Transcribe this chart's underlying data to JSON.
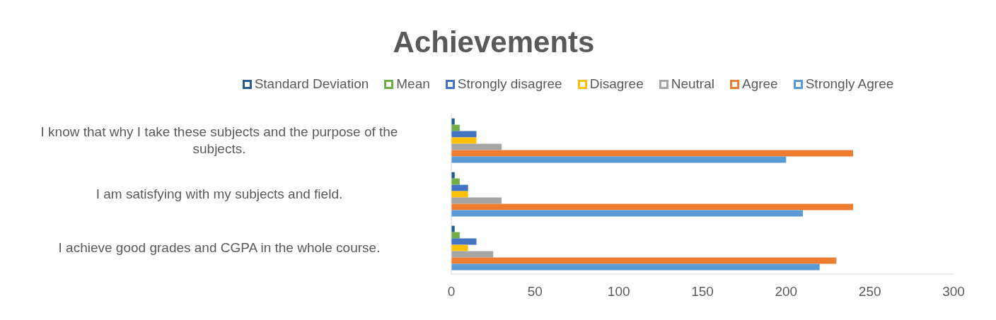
{
  "chart_data": {
    "type": "bar",
    "orientation": "horizontal",
    "title": "Achievements",
    "categories": [
      "I know that why I take these subjects and the purpose of the subjects.",
      "I am satisfying with my subjects and field.",
      "I achieve good grades and CGPA in the whole course."
    ],
    "series": [
      {
        "name": "Standard Deviation",
        "color": "#255e91",
        "values": [
          2,
          2,
          2
        ]
      },
      {
        "name": "Mean",
        "color": "#70ad47",
        "values": [
          5,
          5,
          5
        ]
      },
      {
        "name": "Strongly disagree",
        "color": "#4472c4",
        "values": [
          15,
          10,
          15
        ]
      },
      {
        "name": "Disagree",
        "color": "#ffc000",
        "values": [
          15,
          10,
          10
        ]
      },
      {
        "name": "Neutral",
        "color": "#a5a5a5",
        "values": [
          30,
          30,
          25
        ]
      },
      {
        "name": "Agree",
        "color": "#ed7d31",
        "values": [
          240,
          240,
          230
        ]
      },
      {
        "name": "Strongly Agree",
        "color": "#5b9bd5",
        "values": [
          200,
          210,
          220
        ]
      }
    ],
    "xlim": [
      0,
      300
    ],
    "xticks": [
      0,
      50,
      100,
      150,
      200,
      250,
      300
    ],
    "grid": false,
    "legend": "top"
  }
}
